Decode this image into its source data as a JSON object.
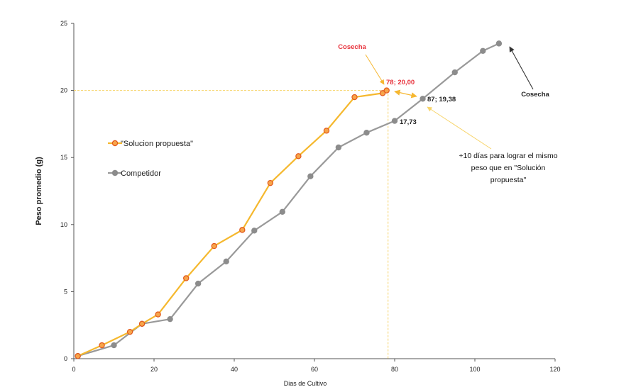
{
  "chart_data": {
    "type": "line",
    "xlabel": "Dias de Cultivo",
    "ylabel": "Peso promedio (g)",
    "xlim": [
      0,
      120
    ],
    "ylim": [
      0,
      25
    ],
    "x_ticks": [
      0,
      20,
      40,
      60,
      80,
      100,
      120
    ],
    "y_ticks": [
      0,
      5,
      10,
      15,
      20,
      25
    ],
    "grid": false,
    "legend_position": "left",
    "series": [
      {
        "name": "\"Solucion propuesta\"",
        "color": "#F5B82E",
        "marker_fill": "#F7A54A",
        "marker_stroke": "#E2571C",
        "x": [
          1,
          7,
          14,
          17,
          21,
          28,
          35,
          42,
          49,
          56,
          63,
          70,
          77,
          78
        ],
        "y": [
          0.2,
          1.0,
          2.0,
          2.6,
          3.3,
          6.0,
          8.4,
          9.6,
          13.1,
          15.1,
          17.0,
          19.5,
          19.8,
          20.0
        ]
      },
      {
        "name": "Competidor",
        "color": "#999999",
        "marker_fill": "#8C8C8C",
        "marker_stroke": "#8C8C8C",
        "x": [
          1,
          10,
          17,
          24,
          31,
          38,
          45,
          52,
          59,
          66,
          73,
          80,
          87,
          95,
          102,
          106
        ],
        "y": [
          0.2,
          1.0,
          2.6,
          2.95,
          5.6,
          7.25,
          9.55,
          10.95,
          13.6,
          15.75,
          16.85,
          17.73,
          19.38,
          21.35,
          22.95,
          23.5
        ]
      }
    ],
    "annotations": {
      "cosecha_top": "Cosecha",
      "label_78": "78; 20,00",
      "label_87": "87; 19,38",
      "label_1773": "17,73",
      "cosecha_right": "Cosecha",
      "note_line1": "+10 días para lograr el mismo",
      "note_line2": "peso que en \"Solución",
      "note_line3": "propuesta\""
    },
    "colors": {
      "annotation_red": "#E8323C",
      "annotation_dark": "#222222",
      "guide_line": "#F7D46A",
      "arrow_orange": "#F6B731",
      "note_arrow": "#F7D46A",
      "axis": "#555555"
    }
  }
}
